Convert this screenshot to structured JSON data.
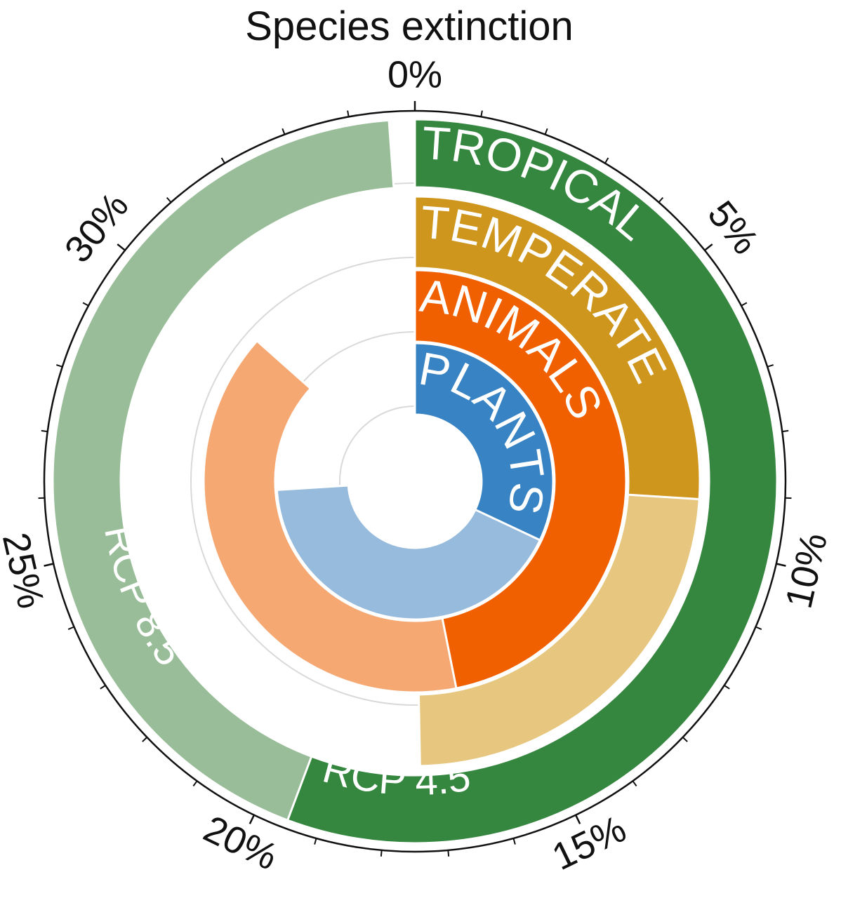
{
  "chart_data": {
    "type": "radial-bar",
    "title": "Species extinction",
    "axis": {
      "min": 0,
      "max": 35,
      "tick_labels": [
        "0%",
        "5%",
        "10%",
        "15%",
        "20%",
        "25%",
        "30%"
      ],
      "tick_values": [
        0,
        5,
        10,
        15,
        20,
        25,
        30
      ],
      "minor_step": 1
    },
    "grid": true,
    "rings": [
      {
        "name": "TROPICAL",
        "series": [
          {
            "name": "RCP 4.5",
            "value": 19.5,
            "color": "#35863F"
          },
          {
            "name": "RCP 8.5",
            "value": 34.6,
            "color": "#98BD98"
          }
        ]
      },
      {
        "name": "TEMPERATE",
        "series": [
          {
            "value": 9.1,
            "color": "#CE961D"
          },
          {
            "value": 17.4,
            "color": "#E7C77F"
          }
        ]
      },
      {
        "name": "ANIMALS",
        "series": [
          {
            "value": 16.4,
            "color": "#F06000"
          },
          {
            "value": 30.3,
            "color": "#F6A873"
          }
        ]
      },
      {
        "name": "PLANTS",
        "series": [
          {
            "value": 11.2,
            "color": "#3783C3"
          },
          {
            "value": 25.9,
            "color": "#97BBDD"
          }
        ]
      }
    ]
  }
}
